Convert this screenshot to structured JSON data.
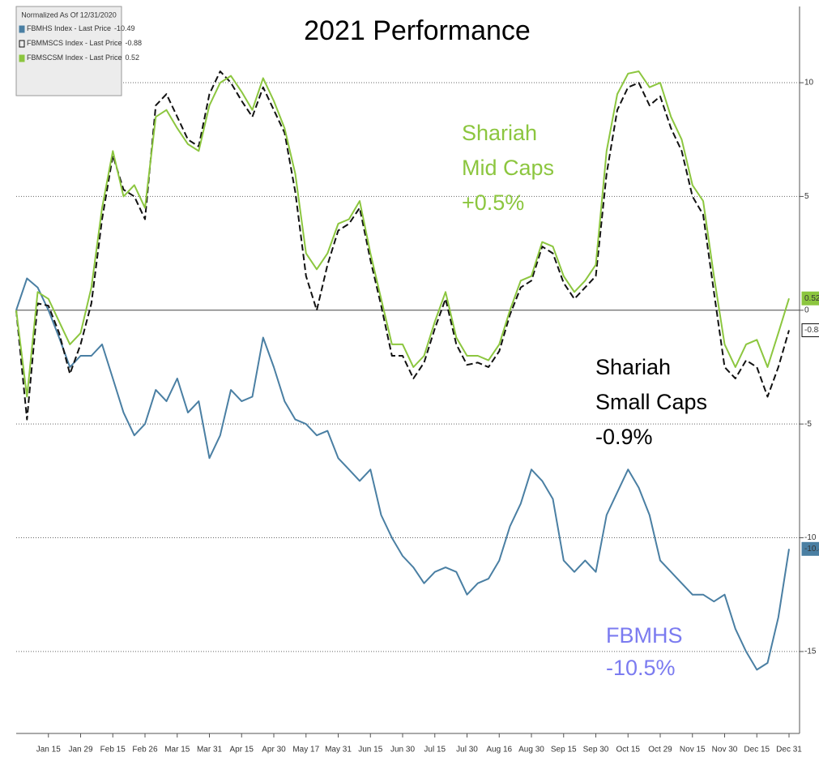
{
  "chart_data": {
    "type": "line",
    "title": "2021 Performance",
    "legend_title": "Normalized As Of 12/31/2020",
    "categories": [
      null,
      null,
      null,
      "Jan 15",
      null,
      null,
      "Jan 29",
      null,
      null,
      "Feb 15",
      null,
      null,
      "Feb 26",
      null,
      null,
      "Mar 15",
      null,
      null,
      "Mar 31",
      null,
      null,
      "Apr 15",
      null,
      null,
      "Apr 30",
      null,
      null,
      "May 17",
      null,
      null,
      "May 31",
      null,
      null,
      "Jun 15",
      null,
      null,
      "Jun 30",
      null,
      null,
      "Jul 15",
      null,
      null,
      "Jul 30",
      null,
      null,
      "Aug 16",
      null,
      null,
      "Aug 30",
      null,
      null,
      "Sep 15",
      null,
      null,
      "Sep 30",
      null,
      null,
      "Oct 15",
      null,
      null,
      "Oct 29",
      null,
      null,
      "Nov 15",
      null,
      null,
      "Nov 30",
      null,
      null,
      "Dec 15",
      null,
      null,
      "Dec 31"
    ],
    "ylim": [
      -18.6,
      13.35
    ],
    "yticks": [
      10,
      5,
      0,
      -5,
      -10,
      -15
    ],
    "grid": true,
    "legend_position": "upper left",
    "series": [
      {
        "name": "FBMHS Index - Last Price",
        "color": "#4a7fa3",
        "dashed": false,
        "values": [
          0,
          1.4,
          1.0,
          0,
          -1.2,
          -2.5,
          -2.0,
          -2.0,
          -1.5,
          -3.0,
          -4.5,
          -5.5,
          -5.0,
          -3.5,
          -4.0,
          -3.0,
          -4.5,
          -4.0,
          -6.5,
          -5.5,
          -3.5,
          -4.0,
          -3.8,
          -1.2,
          -2.5,
          -4.0,
          -4.8,
          -5.0,
          -5.5,
          -5.3,
          -6.5,
          -7.0,
          -7.5,
          -7.0,
          -9.0,
          -10.0,
          -10.8,
          -11.3,
          -12.0,
          -11.5,
          -11.3,
          -11.5,
          -12.5,
          -12.0,
          -11.8,
          -11.0,
          -9.5,
          -8.5,
          -7.0,
          -7.5,
          -8.3,
          -11.0,
          -11.5,
          -11.0,
          -11.5,
          -9.0,
          -8.0,
          -7.0,
          -7.8,
          -9.0,
          -11.0,
          -11.5,
          -12.0,
          -12.5,
          -12.5,
          -12.8,
          -12.5,
          -14.0,
          -15.0,
          -15.8,
          -15.5,
          -13.5,
          -10.49
        ]
      },
      {
        "name": "FBMMSCS Index - Last Price",
        "color": "#111111",
        "dashed": true,
        "values": [
          0,
          -4.8,
          0.3,
          0.2,
          -1.0,
          -2.8,
          -1.5,
          0.3,
          4.0,
          6.8,
          5.3,
          5.0,
          4.0,
          9.0,
          9.5,
          8.5,
          7.5,
          7.2,
          9.5,
          10.5,
          10.0,
          9.2,
          8.5,
          9.8,
          8.8,
          7.8,
          5.2,
          1.5,
          0.0,
          2.0,
          3.5,
          3.8,
          4.5,
          2.2,
          0.2,
          -2.0,
          -2.0,
          -3.0,
          -2.3,
          -0.8,
          0.5,
          -1.5,
          -2.4,
          -2.3,
          -2.5,
          -1.8,
          -0.2,
          1.0,
          1.3,
          2.8,
          2.5,
          1.2,
          0.5,
          1.0,
          1.5,
          6.0,
          8.8,
          9.8,
          10.0,
          9.0,
          9.4,
          8.0,
          7.0,
          5.0,
          4.2,
          0.8,
          -2.5,
          -3.0,
          -2.2,
          -2.5,
          -3.8,
          -2.5,
          -0.88
        ]
      },
      {
        "name": "FBMSCSM Index - Last Price",
        "color": "#8cc63f",
        "dashed": false,
        "values": [
          0,
          -3.8,
          0.8,
          0.5,
          -0.5,
          -1.5,
          -1.0,
          1.0,
          4.5,
          7.0,
          5.0,
          5.5,
          4.5,
          8.5,
          8.8,
          8.0,
          7.3,
          7.0,
          9.0,
          10.0,
          10.3,
          9.6,
          8.8,
          10.2,
          9.2,
          8.0,
          6.0,
          2.5,
          1.8,
          2.5,
          3.8,
          4.0,
          4.8,
          2.5,
          0.5,
          -1.5,
          -1.5,
          -2.5,
          -2.0,
          -0.5,
          0.8,
          -1.2,
          -2.0,
          -2.0,
          -2.2,
          -1.5,
          0.0,
          1.3,
          1.5,
          3.0,
          2.8,
          1.5,
          0.8,
          1.3,
          2.0,
          7.0,
          9.5,
          10.4,
          10.5,
          9.8,
          10.0,
          8.5,
          7.5,
          5.5,
          4.8,
          1.5,
          -1.5,
          -2.5,
          -1.5,
          -1.3,
          -2.5,
          -1.0,
          0.52
        ]
      }
    ],
    "annotations": [
      {
        "lines": [
          "Shariah",
          "Mid Caps",
          "+0.5%"
        ],
        "color": "#8cc63f"
      },
      {
        "lines": [
          "Shariah",
          "Small Caps",
          "-0.9%"
        ],
        "color": "#000000"
      },
      {
        "lines": [
          "FBMHS",
          "-10.5%"
        ],
        "color": "#7b7bf0"
      }
    ]
  }
}
